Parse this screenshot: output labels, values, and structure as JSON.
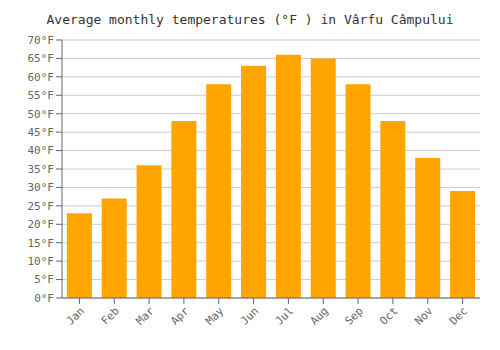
{
  "chart_data": {
    "type": "bar",
    "title": "Average monthly temperatures (°F ) in Vârfu Câmpului",
    "categories": [
      "Jan",
      "Feb",
      "Mar",
      "Apr",
      "May",
      "Jun",
      "Jul",
      "Aug",
      "Sep",
      "Oct",
      "Nov",
      "Dec"
    ],
    "values": [
      23,
      27,
      36,
      48,
      58,
      63,
      66,
      65,
      58,
      48,
      38,
      29
    ],
    "color": "#FFA500",
    "ylim": [
      0,
      70
    ],
    "yticks": [
      {
        "value": 0,
        "label": "0°F"
      },
      {
        "value": 5,
        "label": "5°F"
      },
      {
        "value": 10,
        "label": "10°F"
      },
      {
        "value": 15,
        "label": "15°F"
      },
      {
        "value": 20,
        "label": "20°F"
      },
      {
        "value": 25,
        "label": "25°F"
      },
      {
        "value": 30,
        "label": "30°F"
      },
      {
        "value": 35,
        "label": "35°F"
      },
      {
        "value": 40,
        "label": "40°F"
      },
      {
        "value": 45,
        "label": "45°F"
      },
      {
        "value": 50,
        "label": "50°F"
      },
      {
        "value": 55,
        "label": "55°F"
      },
      {
        "value": 60,
        "label": "60°F"
      },
      {
        "value": 65,
        "label": "65°F"
      },
      {
        "value": 70,
        "label": "70°F"
      }
    ],
    "grid": true
  }
}
